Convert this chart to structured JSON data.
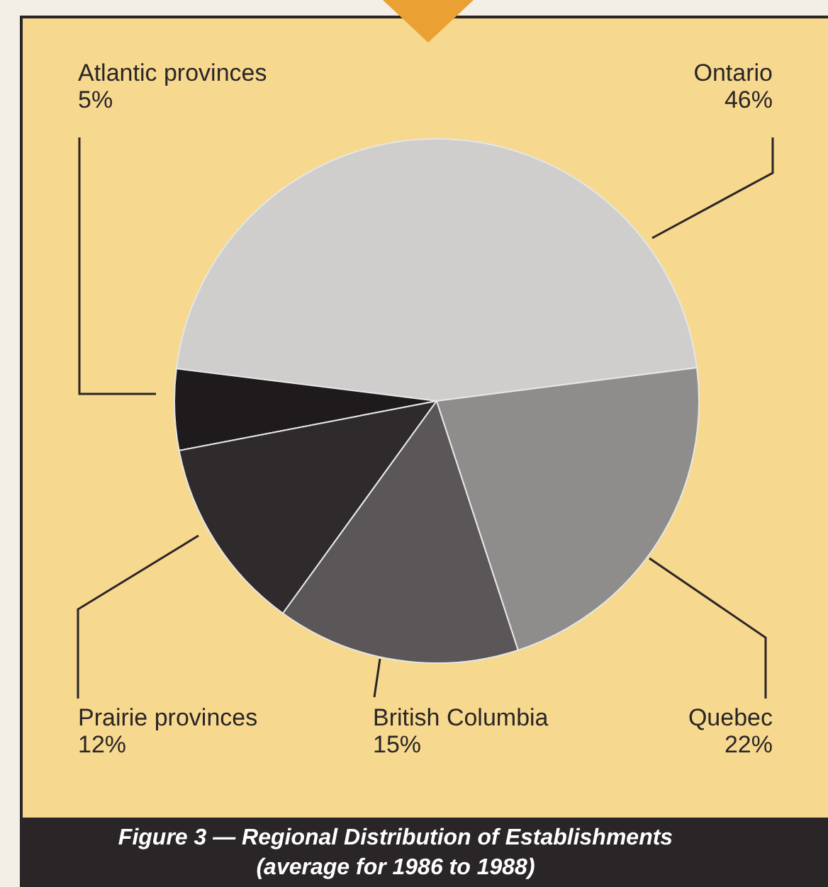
{
  "chart_data": {
    "type": "pie",
    "title": "Figure 3 — Regional Distribution of Establishments",
    "subtitle": "(average for 1986 to 1988)",
    "categories": [
      "Ontario",
      "Atlantic provinces",
      "Prairie provinces",
      "British Columbia",
      "Quebec"
    ],
    "values": [
      46,
      5,
      12,
      15,
      22
    ],
    "value_labels": [
      "46%",
      "5%",
      "12%",
      "15%",
      "22%"
    ],
    "colors": [
      "#cfcecd",
      "#1f1b1c",
      "#2f2b2d",
      "#5b5758",
      "#8f8d8c"
    ]
  }
}
